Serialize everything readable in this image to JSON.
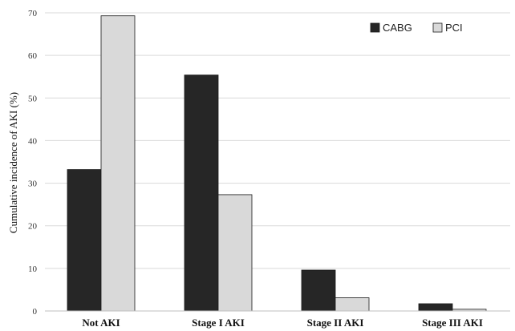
{
  "chart_data": {
    "type": "bar",
    "title": "",
    "xlabel": "",
    "ylabel": "Cumulative incidence of AKI (%)",
    "ylim": [
      0,
      70
    ],
    "yticks": [
      0,
      10,
      20,
      30,
      40,
      50,
      60,
      70
    ],
    "grid": true,
    "legend_position": "top-right",
    "categories": [
      "Not AKI",
      "Stage I AKI",
      "Stage II AKI",
      "Stage III AKI"
    ],
    "series": [
      {
        "name": "CABG",
        "color": "#262626",
        "values": [
          33.2,
          55.4,
          9.6,
          1.7
        ]
      },
      {
        "name": "PCI",
        "color": "#d9d9d9",
        "values": [
          69.3,
          27.3,
          3.1,
          0.4
        ]
      }
    ]
  }
}
